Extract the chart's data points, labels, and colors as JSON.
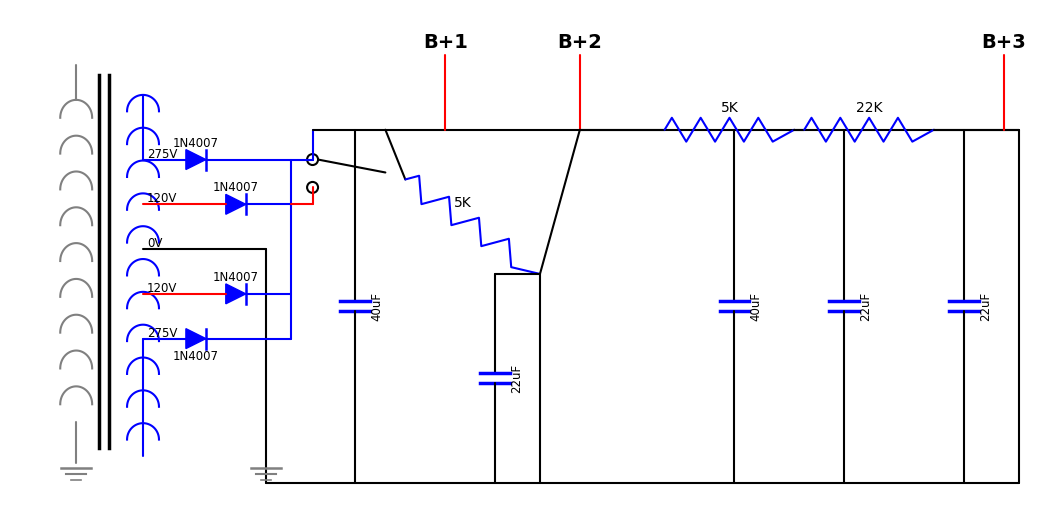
{
  "bg_color": "#ffffff",
  "wire_color": "#000000",
  "blue_color": "#0000ff",
  "red_color": "#ff0000",
  "gray_color": "#808080",
  "fig_width": 10.62,
  "fig_height": 5.29,
  "labels": {
    "B1": "B+1",
    "B2": "B+2",
    "B3": "B+3",
    "d1": "1N4007",
    "d2": "1N4007",
    "d3": "1N4007",
    "d4": "1N4007",
    "v275a": "275V",
    "v120a": "120V",
    "v0": "0V",
    "v120b": "120V",
    "v275b": "275V",
    "r1": "5K",
    "r2": "5K",
    "r3": "22K",
    "c1": "40uF",
    "c2": "22uF",
    "c3": "40uF",
    "c4": "22uF",
    "c5": "22uF"
  }
}
